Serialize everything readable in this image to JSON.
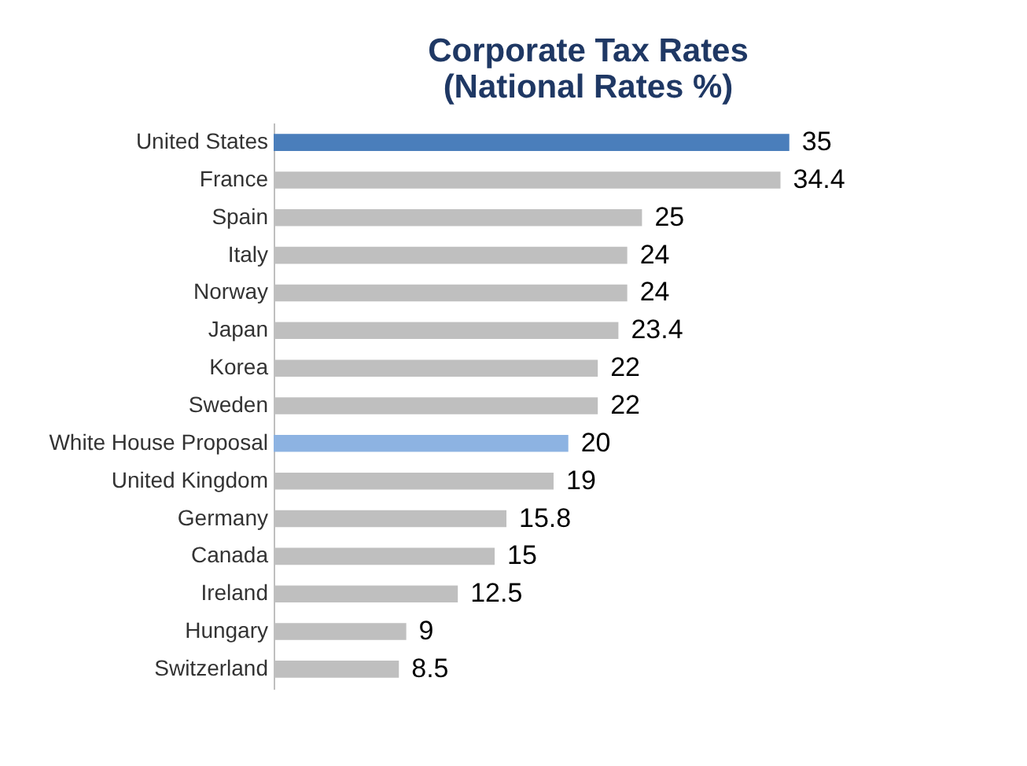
{
  "chart_data": {
    "type": "bar",
    "orientation": "horizontal",
    "title": "Corporate Tax Rates\n(National Rates %)",
    "categories": [
      "United States",
      "France",
      "Spain",
      "Italy",
      "Norway",
      "Japan",
      "Korea",
      "Sweden",
      "White House Proposal",
      "United Kingdom",
      "Germany",
      "Canada",
      "Ireland",
      "Hungary",
      "Switzerland"
    ],
    "values": [
      35,
      34.4,
      25,
      24,
      24,
      23.4,
      22,
      22,
      20,
      19,
      15.8,
      15,
      12.5,
      9,
      8.5
    ],
    "colors": [
      "#4a7ebb",
      "#bfbfbf",
      "#bfbfbf",
      "#bfbfbf",
      "#bfbfbf",
      "#bfbfbf",
      "#bfbfbf",
      "#bfbfbf",
      "#8db3e2",
      "#bfbfbf",
      "#bfbfbf",
      "#bfbfbf",
      "#bfbfbf",
      "#bfbfbf",
      "#bfbfbf"
    ],
    "data_labels": true,
    "grid": false
  }
}
